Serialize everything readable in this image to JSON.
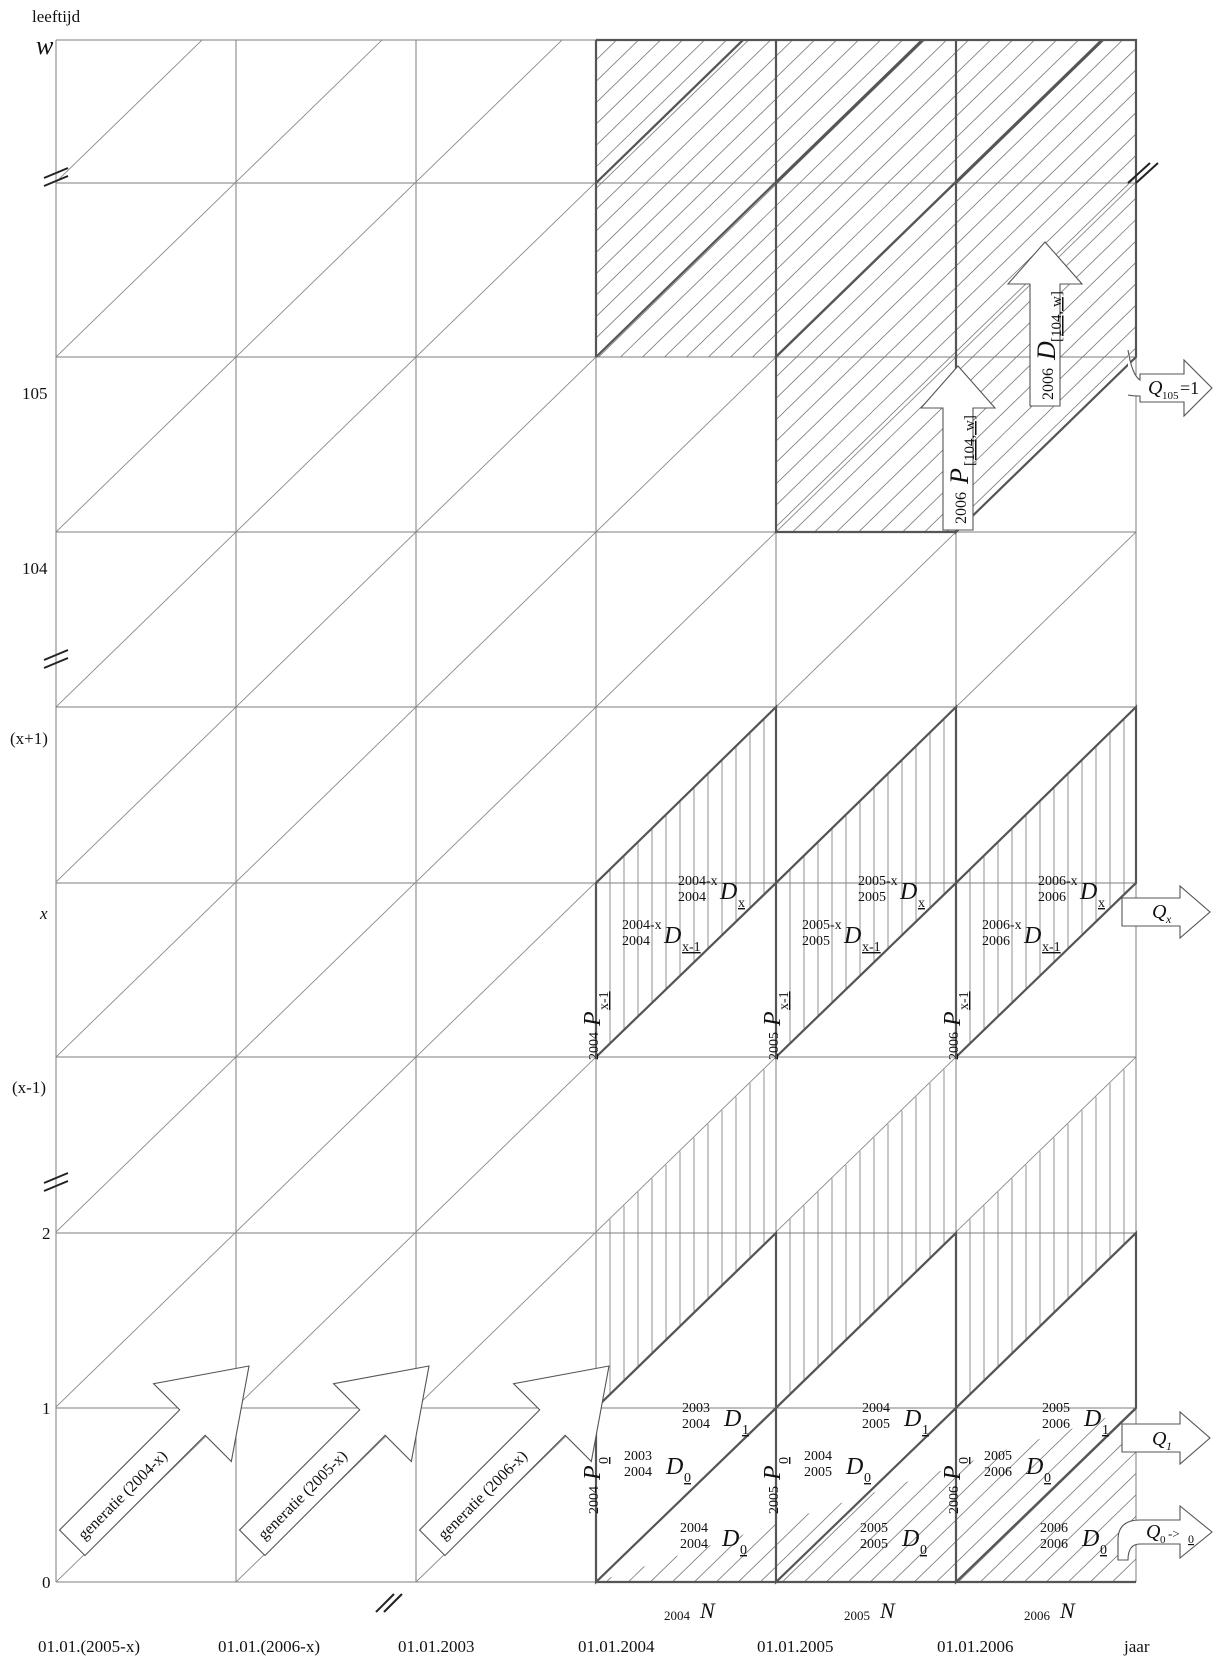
{
  "axes": {
    "y_title": "leeftijd",
    "x_title": "jaar",
    "y_ticks": [
      "0",
      "1",
      "2",
      "(x-1)",
      "x",
      "(x+1)",
      "104",
      "105",
      "w"
    ],
    "x_ticks": [
      "01.01.(2005-x)",
      "01.01.(2006-x)",
      "01.01.2003",
      "01.01.2004",
      "01.01.2005",
      "01.01.2006"
    ]
  },
  "generations": [
    "generatie (2004-x)",
    "generatie (2005-x)",
    "generatie (2006-x)"
  ],
  "years": [
    {
      "year": "2004",
      "N": {
        "pre": "2004",
        "sym": "N"
      },
      "P0": {
        "pre": "2004",
        "sym": "P",
        "sub": "0"
      },
      "D0_lower": {
        "top": "2004",
        "bot": "2004",
        "sym": "D",
        "sub": "0"
      },
      "D0_upper": {
        "top": "2003",
        "bot": "2004",
        "sym": "D",
        "sub": "0"
      },
      "D1": {
        "top": "2003",
        "bot": "2004",
        "sym": "D",
        "sub": "1"
      },
      "Px": {
        "pre": "2004",
        "sym": "P",
        "sub": "x-1"
      },
      "Dx1": {
        "top": "2004-x",
        "bot": "2004",
        "sym": "D",
        "sub": "x-1"
      },
      "Dx": {
        "top": "2004-x",
        "bot": "2004",
        "sym": "D",
        "sub": "x"
      }
    },
    {
      "year": "2005",
      "N": {
        "pre": "2005",
        "sym": "N"
      },
      "P0": {
        "pre": "2005",
        "sym": "P",
        "sub": "0"
      },
      "D0_lower": {
        "top": "2005",
        "bot": "2005",
        "sym": "D",
        "sub": "0"
      },
      "D0_upper": {
        "top": "2004",
        "bot": "2005",
        "sym": "D",
        "sub": "0"
      },
      "D1": {
        "top": "2004",
        "bot": "2005",
        "sym": "D",
        "sub": "1"
      },
      "Px": {
        "pre": "2005",
        "sym": "P",
        "sub": "x-1"
      },
      "Dx1": {
        "top": "2005-x",
        "bot": "2005",
        "sym": "D",
        "sub": "x-1"
      },
      "Dx": {
        "top": "2005-x",
        "bot": "2005",
        "sym": "D",
        "sub": "x"
      }
    },
    {
      "year": "2006",
      "N": {
        "pre": "2006",
        "sym": "N"
      },
      "P0": {
        "pre": "2006",
        "sym": "P",
        "sub": "0"
      },
      "D0_lower": {
        "top": "2006",
        "bot": "2006",
        "sym": "D",
        "sub": "0"
      },
      "D0_upper": {
        "top": "2005",
        "bot": "2006",
        "sym": "D",
        "sub": "0"
      },
      "D1": {
        "top": "2005",
        "bot": "2006",
        "sym": "D",
        "sub": "1"
      },
      "Px": {
        "pre": "2006",
        "sym": "P",
        "sub": "x-1"
      },
      "Dx1": {
        "top": "2006-x",
        "bot": "2006",
        "sym": "D",
        "sub": "x-1"
      },
      "Dx": {
        "top": "2006-x",
        "bot": "2006",
        "sym": "D",
        "sub": "x"
      }
    }
  ],
  "top_labels": {
    "P_open": {
      "pre": "2006",
      "sym": "P",
      "sub": "[104, w]"
    },
    "D_open": {
      "pre": "2006",
      "sym": "D",
      "sub": "[104, w]"
    }
  },
  "outputs": {
    "Q105": {
      "sym": "Q",
      "sub": "105",
      "suffix": "=1"
    },
    "Qx": {
      "sym": "Q",
      "sub": "x"
    },
    "Q1": {
      "sym": "Q",
      "sub": "1"
    },
    "Q0": {
      "sym": "Q",
      "sub": "0",
      "mid": "->",
      "tail": "0"
    }
  }
}
